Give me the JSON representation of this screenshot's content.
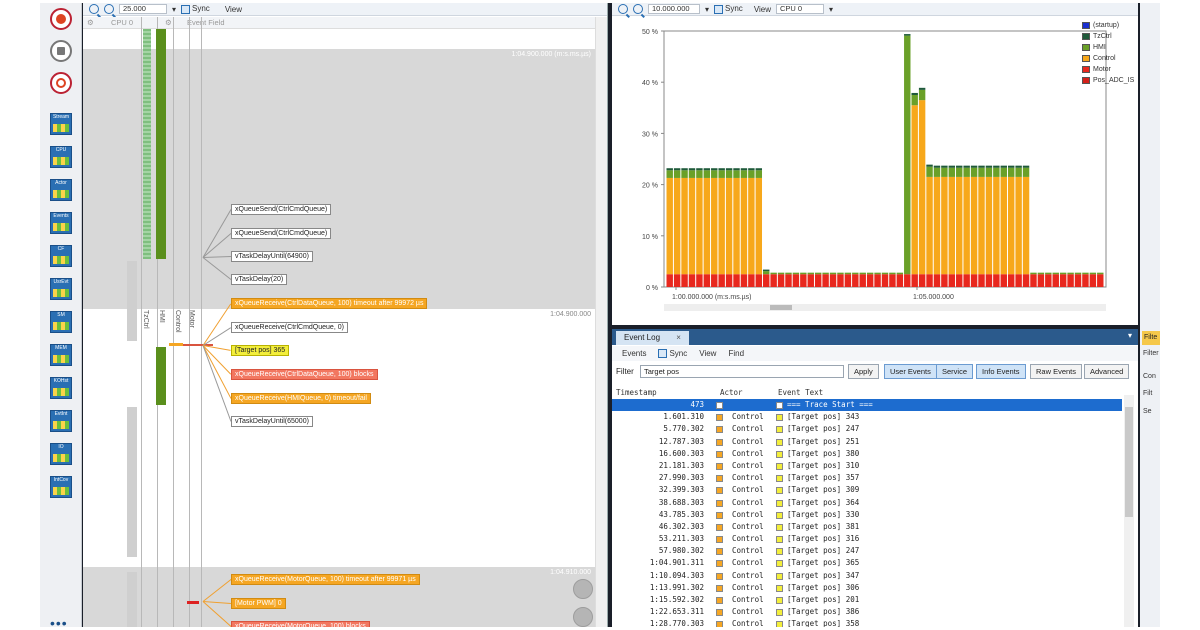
{
  "trace_view": {
    "zoom_value": "25.000",
    "sync_label": "Sync",
    "view_label": "View",
    "header_cpu_label": "CPU 0",
    "header_event_field": "Event Field",
    "lane_labels": [
      "TzCtrl",
      "HMI",
      "Control",
      "Motor"
    ],
    "time_markers": [
      "1:04.900.000 (m:s.ms.µs)",
      "1:04.900.000",
      "1:04.910.000"
    ],
    "events": [
      {
        "text": "xQueueSend(CtrlCmdQueue)",
        "style": "white"
      },
      {
        "text": "xQueueSend(CtrlCmdQueue)",
        "style": "white"
      },
      {
        "text": "vTaskDelayUntil(64900)",
        "style": "white"
      },
      {
        "text": "vTaskDelay(20)",
        "style": "white"
      },
      {
        "text": "xQueueReceive(CtrlDataQueue, 100) timeout after 99972 µs",
        "style": "orange"
      },
      {
        "text": "xQueueReceive(CtrlCmdQueue, 0)",
        "style": "white"
      },
      {
        "text": "[Target pos] 365",
        "style": "yellow"
      },
      {
        "text": "xQueueReceive(CtrlDataQueue, 100) blocks",
        "style": "red"
      },
      {
        "text": "xQueueReceive(HMIQueue, 0) timeout/fail",
        "style": "orange"
      },
      {
        "text": "vTaskDelayUntil(65000)",
        "style": "white"
      },
      {
        "text": "xQueueReceive(MotorQueue, 100) timeout after 99971 µs",
        "style": "orange"
      },
      {
        "text": "[Motor PWM] 0",
        "style": "orange"
      },
      {
        "text": "xQueueReceive(MotorQueue, 100) blocks",
        "style": "red"
      }
    ]
  },
  "cpu_view": {
    "zoom_value": "10.000.000",
    "sync_label": "Sync",
    "view_label": "View",
    "cpu_select": "CPU 0"
  },
  "chart_data": {
    "type": "bar",
    "stacked": true,
    "y_ticks": [
      "0 %",
      "10 %",
      "20 %",
      "30 %",
      "40 %",
      "50 %"
    ],
    "ylim": [
      0,
      50
    ],
    "x_tick_labels": [
      "1:00.000.000 (m:s.ms.µs)",
      "1:05.000.000"
    ],
    "legend_position": "top-right",
    "legend": [
      {
        "name": "(startup)",
        "color": "#1a2fd0"
      },
      {
        "name": "TzCtrl",
        "color": "#1f5a3a"
      },
      {
        "name": "HMI",
        "color": "#6aa028"
      },
      {
        "name": "Control",
        "color": "#f7a81b"
      },
      {
        "name": "Motor",
        "color": "#e8281e"
      },
      {
        "name": "Pos_ADC_IS",
        "color": "#d4201a"
      }
    ],
    "groups": [
      {
        "count": 13,
        "motor": 2.5,
        "control": 18.8,
        "hmi": 1.5,
        "tzctrl": 0.4
      },
      {
        "count": 1,
        "motor": 2.5,
        "control": 0.0,
        "hmi": 0.6,
        "tzctrl": 0.3
      },
      {
        "count": 18,
        "motor": 2.5,
        "control": 0.0,
        "hmi": 0.3,
        "tzctrl": 0.0
      },
      {
        "count": 1,
        "motor": 2.5,
        "control": 0.0,
        "hmi": 46.6,
        "tzctrl": 0.3
      },
      {
        "count": 1,
        "motor": 2.5,
        "control": 33.0,
        "hmi": 2.0,
        "tzctrl": 0.4
      },
      {
        "count": 1,
        "motor": 2.5,
        "control": 34.0,
        "hmi": 2.0,
        "tzctrl": 0.4
      },
      {
        "count": 1,
        "motor": 2.5,
        "control": 19.0,
        "hmi": 2.0,
        "tzctrl": 0.4
      },
      {
        "count": 13,
        "motor": 2.5,
        "control": 19.0,
        "hmi": 1.8,
        "tzctrl": 0.4
      },
      {
        "count": 10,
        "motor": 2.5,
        "control": 0.0,
        "hmi": 0.3,
        "tzctrl": 0.0
      }
    ]
  },
  "event_log": {
    "tab_title": "Event Log",
    "tab_close": "×",
    "toolbar": [
      "Events",
      "Sync",
      "View",
      "Find"
    ],
    "filter_label": "Filter",
    "filter_value": "Target pos",
    "buttons": {
      "apply": "Apply",
      "user_events": "User Events",
      "service": "Service",
      "info_events": "Info Events",
      "raw_events": "Raw Events",
      "advanced": "Advanced"
    },
    "columns": [
      "Timestamp",
      "Actor",
      "Event Text"
    ],
    "rows": [
      {
        "ts": "473",
        "actor": "",
        "text": "=== Trace Start ===",
        "selected": true
      },
      {
        "ts": "1.601.310",
        "actor": "Control",
        "text": "[Target pos] 343"
      },
      {
        "ts": "5.770.302",
        "actor": "Control",
        "text": "[Target pos] 247"
      },
      {
        "ts": "12.787.303",
        "actor": "Control",
        "text": "[Target pos] 251"
      },
      {
        "ts": "16.600.303",
        "actor": "Control",
        "text": "[Target pos] 380"
      },
      {
        "ts": "21.181.303",
        "actor": "Control",
        "text": "[Target pos] 310"
      },
      {
        "ts": "27.990.303",
        "actor": "Control",
        "text": "[Target pos] 357"
      },
      {
        "ts": "32.399.303",
        "actor": "Control",
        "text": "[Target pos] 309"
      },
      {
        "ts": "38.688.303",
        "actor": "Control",
        "text": "[Target pos] 364"
      },
      {
        "ts": "43.785.303",
        "actor": "Control",
        "text": "[Target pos] 330"
      },
      {
        "ts": "46.302.303",
        "actor": "Control",
        "text": "[Target pos] 381"
      },
      {
        "ts": "53.211.303",
        "actor": "Control",
        "text": "[Target pos] 316"
      },
      {
        "ts": "57.980.302",
        "actor": "Control",
        "text": "[Target pos] 247"
      },
      {
        "ts": "1:04.901.311",
        "actor": "Control",
        "text": "[Target pos] 365"
      },
      {
        "ts": "1:10.094.303",
        "actor": "Control",
        "text": "[Target pos] 347"
      },
      {
        "ts": "1:13.991.302",
        "actor": "Control",
        "text": "[Target pos] 306"
      },
      {
        "ts": "1:15.592.302",
        "actor": "Control",
        "text": "[Target pos] 201"
      },
      {
        "ts": "1:22.653.311",
        "actor": "Control",
        "text": "[Target pos] 386"
      },
      {
        "ts": "1:28.770.303",
        "actor": "Control",
        "text": "[Target pos] 358"
      }
    ]
  },
  "icons": {
    "sidebar": [
      "Stream",
      "CPU",
      "Actor",
      "Events",
      "CF",
      "UsrEvt",
      "SM",
      "MEM",
      "KOHst",
      "EvtInt",
      "IO",
      "IntCov"
    ]
  },
  "right_panel": {
    "tab": "Filte",
    "lines": [
      "Filter",
      "Con",
      "Filt",
      "Se"
    ]
  }
}
